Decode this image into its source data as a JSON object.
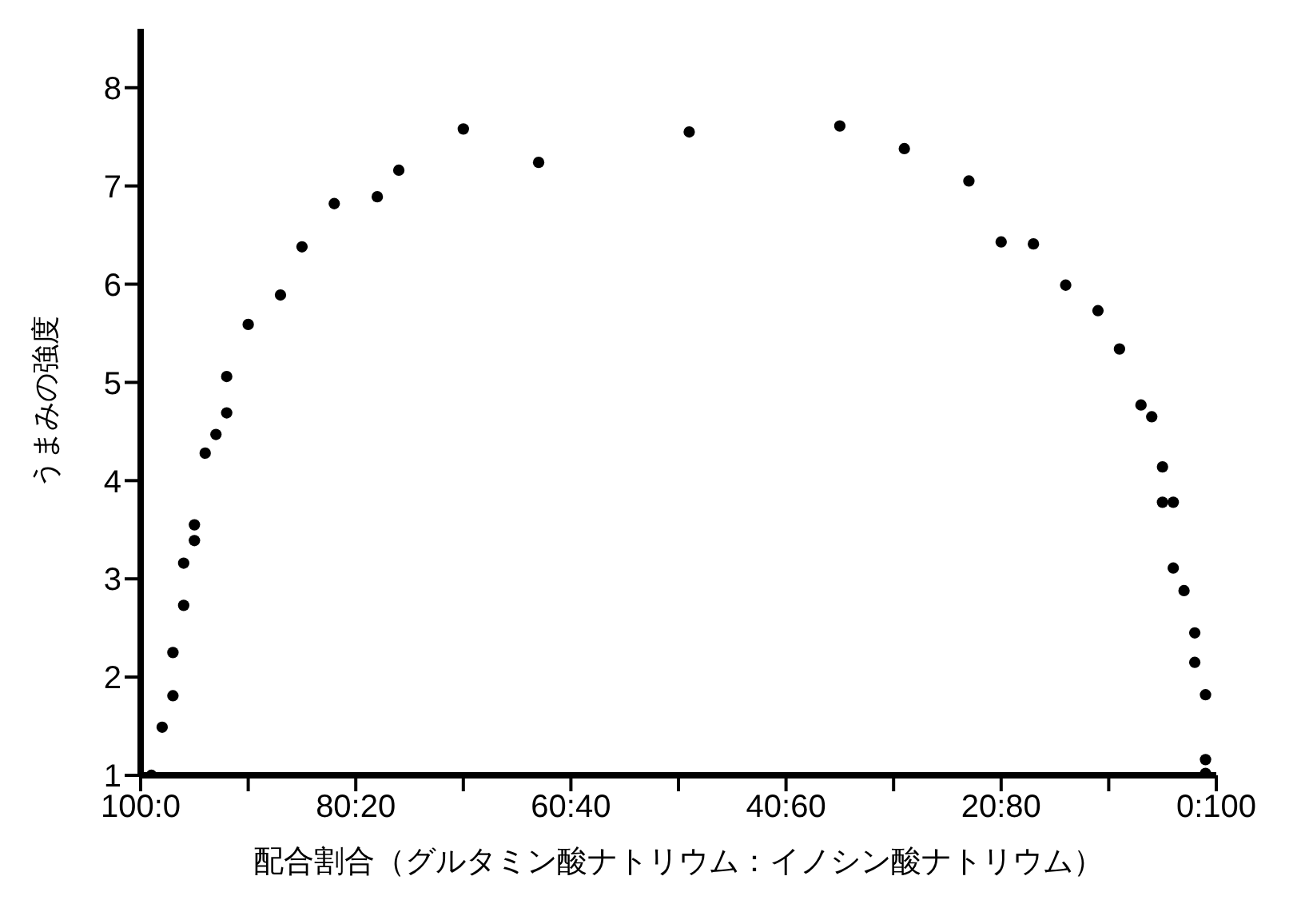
{
  "chart_data": {
    "type": "scatter",
    "xlabel": "配合割合（グルタミン酸ナトリウム：イノシン酸ナトリウム）",
    "ylabel": "うまみの強度",
    "categories": [
      "100:0",
      null,
      null,
      null,
      null,
      null,
      null,
      null,
      null,
      null,
      null,
      null,
      null,
      null,
      null,
      null,
      null,
      null,
      null,
      null,
      "80:20",
      null,
      null,
      null,
      null,
      null,
      null,
      null,
      null,
      null,
      null,
      null,
      null,
      null,
      null,
      null,
      null,
      null,
      null,
      null,
      "60:40",
      null,
      null,
      null,
      null,
      null,
      null,
      null,
      null,
      null,
      null,
      null,
      null,
      null,
      null,
      null,
      null,
      null,
      null,
      null,
      "40:60",
      null,
      null,
      null,
      null,
      null,
      null,
      null,
      null,
      null,
      null,
      null,
      null,
      null,
      null,
      null,
      null,
      null,
      null,
      null,
      "20:80",
      null,
      null,
      null,
      null,
      null,
      null,
      null,
      null,
      null,
      null,
      null,
      null,
      null,
      null,
      null,
      null,
      null,
      null,
      null,
      "0:100"
    ],
    "series": [
      {
        "color": "#000000",
        "values": [
          null,
          1.0,
          1.49,
          1.81,
          2.73,
          3.39,
          4.28,
          4.47,
          4.69,
          null,
          5.59,
          null,
          null,
          5.89,
          null,
          6.38,
          null,
          null,
          6.82,
          null,
          null,
          null,
          6.89,
          null,
          7.16,
          null,
          null,
          null,
          null,
          null,
          7.58,
          null,
          null,
          null,
          null,
          null,
          null,
          7.24,
          null,
          null,
          null,
          null,
          null,
          null,
          null,
          null,
          null,
          null,
          null,
          null,
          null,
          7.55,
          null,
          null,
          null,
          null,
          null,
          null,
          null,
          null,
          null,
          null,
          null,
          null,
          null,
          7.61,
          null,
          null,
          null,
          null,
          null,
          7.38,
          null,
          null,
          null,
          null,
          null,
          7.05,
          null,
          null,
          6.43,
          null,
          null,
          6.41,
          null,
          null,
          5.99,
          null,
          null,
          5.73,
          null,
          5.34,
          null,
          4.77,
          4.65,
          4.14,
          3.78,
          2.88,
          2.45,
          1.82,
          null
        ]
      },
      {
        "color": "#000000",
        "values": [
          null,
          null,
          null,
          2.25,
          3.16,
          3.55,
          null,
          null,
          5.06,
          null,
          null,
          null,
          null,
          null,
          null,
          null,
          null,
          null,
          null,
          null,
          null,
          null,
          null,
          null,
          null,
          null,
          null,
          null,
          null,
          null,
          null,
          null,
          null,
          null,
          null,
          null,
          null,
          null,
          null,
          null,
          null,
          null,
          null,
          null,
          null,
          null,
          null,
          null,
          null,
          null,
          null,
          null,
          null,
          null,
          null,
          null,
          null,
          null,
          null,
          null,
          null,
          null,
          null,
          null,
          null,
          null,
          null,
          null,
          null,
          null,
          null,
          null,
          null,
          null,
          null,
          null,
          null,
          null,
          null,
          null,
          null,
          null,
          null,
          null,
          null,
          null,
          null,
          null,
          null,
          null,
          null,
          null,
          null,
          null,
          null,
          3.78,
          3.11,
          null,
          2.15,
          1.16,
          null
        ]
      },
      {
        "color": "#000000",
        "values": [
          null,
          null,
          null,
          null,
          null,
          null,
          null,
          null,
          null,
          null,
          null,
          null,
          null,
          null,
          null,
          null,
          null,
          null,
          null,
          null,
          null,
          null,
          null,
          null,
          null,
          null,
          null,
          null,
          null,
          null,
          null,
          null,
          null,
          null,
          null,
          null,
          null,
          null,
          null,
          null,
          null,
          null,
          null,
          null,
          null,
          null,
          null,
          null,
          null,
          null,
          null,
          null,
          null,
          null,
          null,
          null,
          null,
          null,
          null,
          null,
          null,
          null,
          null,
          null,
          null,
          null,
          null,
          null,
          null,
          null,
          null,
          null,
          null,
          null,
          null,
          null,
          null,
          null,
          null,
          null,
          null,
          null,
          null,
          null,
          null,
          null,
          null,
          null,
          null,
          null,
          null,
          null,
          null,
          null,
          null,
          null,
          null,
          null,
          null,
          1.02,
          null
        ]
      }
    ],
    "ylim": [
      1,
      8.6
    ],
    "yticks": [
      1,
      2,
      3,
      4,
      5,
      6,
      7,
      8
    ],
    "marker": "circle",
    "grid": false,
    "legend": false
  }
}
